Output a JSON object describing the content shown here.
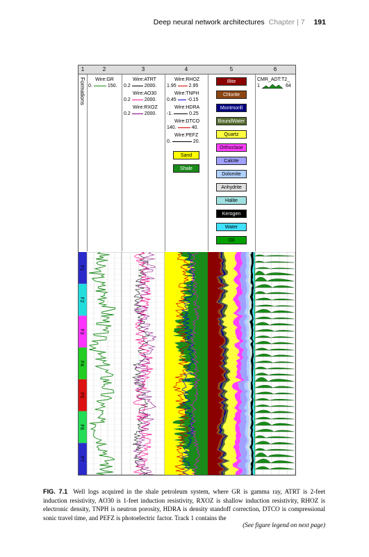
{
  "running_head": {
    "title": "Deep neural network architectures",
    "chapter_label": "Chapter",
    "chapter_number": "7",
    "page_number": "191"
  },
  "figure": {
    "track_numbers": [
      "1",
      "2",
      "3",
      "4",
      "5",
      "6"
    ],
    "formations_label": "Formations",
    "track2": {
      "curve": "Wire:GR",
      "min": "0.",
      "max": "150."
    },
    "track3": {
      "curves": [
        {
          "name": "Wire:ATRT",
          "min": "0.2",
          "max": "2000."
        },
        {
          "name": "Wire:AO30",
          "min": "0.2",
          "max": "2000."
        },
        {
          "name": "Wire:RXOZ",
          "min": "0.2",
          "max": "2000."
        }
      ]
    },
    "track4": {
      "curves": [
        {
          "name": "Wire:RHOZ",
          "min": "1.95",
          "max": "2.95"
        },
        {
          "name": "Wire:TNPH",
          "min": "0.45",
          "max": "-0.15"
        },
        {
          "name": "Wire:HDRA",
          "min": "-1.",
          "max": "0.25"
        },
        {
          "name": "Wire:DTCO",
          "min": "140.",
          "max": "40."
        },
        {
          "name": "Wire:PEFZ",
          "min": "0.",
          "max": "20."
        }
      ],
      "fills": [
        {
          "label": "Sand",
          "color": "#ffff00"
        },
        {
          "label": "Shale",
          "color": "#1a8a1a"
        }
      ]
    },
    "track5": {
      "legend": [
        {
          "label": "Illite",
          "color": "#8b0000",
          "text": "#ffffff"
        },
        {
          "label": "Chlorite",
          "color": "#8b4513",
          "text": "#ffffff"
        },
        {
          "label": "Montmorill",
          "color": "#000080",
          "text": "#ffffff"
        },
        {
          "label": "BoundWater",
          "color": "#556b2f",
          "text": "#ffffff"
        },
        {
          "label": "Quartz",
          "color": "#ffff40",
          "text": "#000000"
        },
        {
          "label": "Orthoclase",
          "color": "#ff40ff",
          "text": "#000000"
        },
        {
          "label": "Calcite",
          "color": "#a0a0ff",
          "text": "#000000"
        },
        {
          "label": "Dolomite",
          "color": "#b0d0ff",
          "text": "#000000"
        },
        {
          "label": "Anhydrite",
          "color": "#e0e0e0",
          "text": "#000000"
        },
        {
          "label": "Halite",
          "color": "#a0e0e0",
          "text": "#000000"
        },
        {
          "label": "Kerogen",
          "color": "#000000",
          "text": "#ffffff"
        },
        {
          "label": "Water",
          "color": "#40e0ff",
          "text": "#000000"
        },
        {
          "label": "Oil",
          "color": "#00a000",
          "text": "#000000"
        }
      ]
    },
    "track6": {
      "curve": "CMR_ADT:T2_",
      "min": "1",
      "max": "64"
    },
    "formations": [
      {
        "label": "F1",
        "color": "#2a2acc"
      },
      {
        "label": "F2",
        "color": "#22dddd"
      },
      {
        "label": "F3",
        "color": "#ff33ff"
      },
      {
        "label": "F4",
        "color": "#22cc22"
      },
      {
        "label": "F5",
        "color": "#dd1111"
      },
      {
        "label": "F6",
        "color": "#22dd55"
      },
      {
        "label": "F7",
        "color": "#2a2acc"
      }
    ]
  },
  "caption": {
    "label": "FIG. 7.1",
    "text": "Well logs acquired in the shale petroleum system, where GR is gamma ray, ATRT is 2-feet induction resistivity, AO30 is 1-feet induction resistivity, RXOZ is shallow induction resistivity, RHOZ is electronic density, TNPH is neutron porosity, HDRA is density standoff correction, DTCO is compressional sonic travel time, and PEFZ is photoelectric factor. Track 1 contains the",
    "continued": "(See figure legend on next page)"
  }
}
